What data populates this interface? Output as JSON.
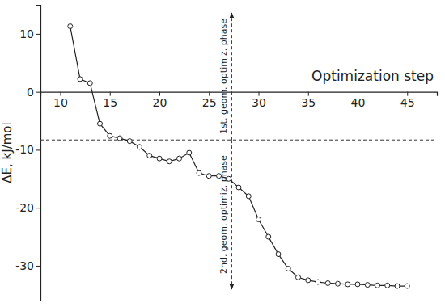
{
  "chart_data": {
    "type": "line",
    "x_label": "Optimization step",
    "y_label": "ΔE, kJ/mol",
    "x": [
      11,
      12,
      13,
      14,
      15,
      16,
      17,
      18,
      19,
      20,
      21,
      22,
      23,
      24,
      25,
      26,
      27,
      28,
      29,
      30,
      31,
      32,
      33,
      34,
      35,
      36,
      37,
      38,
      39,
      40,
      41,
      42,
      43,
      44,
      45
    ],
    "values": [
      11.3,
      2.2,
      1.5,
      -5.5,
      -7.6,
      -8.0,
      -8.5,
      -9.5,
      -11.0,
      -11.5,
      -12.0,
      -11.5,
      -10.5,
      -14.0,
      -14.5,
      -14.5,
      -15.0,
      -16.5,
      -18.0,
      -22.0,
      -25.0,
      -28.0,
      -30.5,
      -32.0,
      -32.5,
      -32.8,
      -33.0,
      -33.1,
      -33.2,
      -33.2,
      -33.3,
      -33.4,
      -33.4,
      -33.5,
      -33.5
    ],
    "color": "#222222",
    "marker": "circle-open",
    "line_style": "solid",
    "xlim": [
      8,
      48
    ],
    "xticks": [
      10,
      15,
      20,
      25,
      30,
      35,
      40,
      45
    ],
    "ylim": [
      -36,
      15
    ],
    "yticks": [
      -30,
      -20,
      -10,
      0,
      10
    ],
    "grid": false,
    "vlines": [
      27.3
    ],
    "hlines": [
      -8.3
    ],
    "annotations": [
      "1st. geom. optimiz. phase",
      "2nd. geom. optimiz. phase"
    ]
  }
}
